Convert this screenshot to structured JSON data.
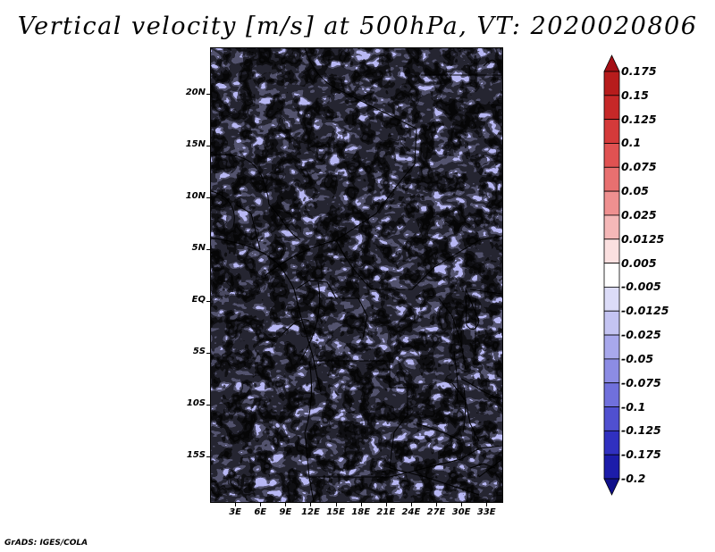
{
  "title": "Vertical velocity [m/s] at 500hPa, VT: 2020020806",
  "footer": "GrADS: IGES/COLA",
  "map": {
    "latitude_labels": [
      "20N",
      "15N",
      "10N",
      "5N",
      "EQ",
      "5S",
      "10S",
      "15S"
    ],
    "longitude_labels": [
      "3E",
      "6E",
      "9E",
      "12E",
      "15E",
      "18E",
      "21E",
      "24E",
      "27E",
      "30E",
      "33E"
    ],
    "lon_range": [
      0,
      35
    ],
    "lat_range": [
      -19.5,
      24.5
    ]
  },
  "colorbar": {
    "labels": [
      "0.175",
      "0.15",
      "0.125",
      "0.1",
      "0.075",
      "0.05",
      "0.025",
      "0.0125",
      "0.005",
      "-0.005",
      "-0.0125",
      "-0.025",
      "-0.05",
      "-0.075",
      "-0.1",
      "-0.125",
      "-0.175",
      "-0.2"
    ],
    "colors": [
      "#a50f15",
      "#b71c1c",
      "#c62828",
      "#d43a3a",
      "#e05252",
      "#e87070",
      "#ef9090",
      "#f5b8b8",
      "#fbe0e0",
      "#ffffff",
      "#dcdcf8",
      "#c4c4f2",
      "#a8a8ec",
      "#8c8ce4",
      "#7070dc",
      "#5050d0",
      "#3030c0",
      "#1c1caa",
      "#10108a"
    ]
  },
  "colors": {
    "positive": "#d44040",
    "negative": "#5a5ae0",
    "borders": "#000000"
  }
}
